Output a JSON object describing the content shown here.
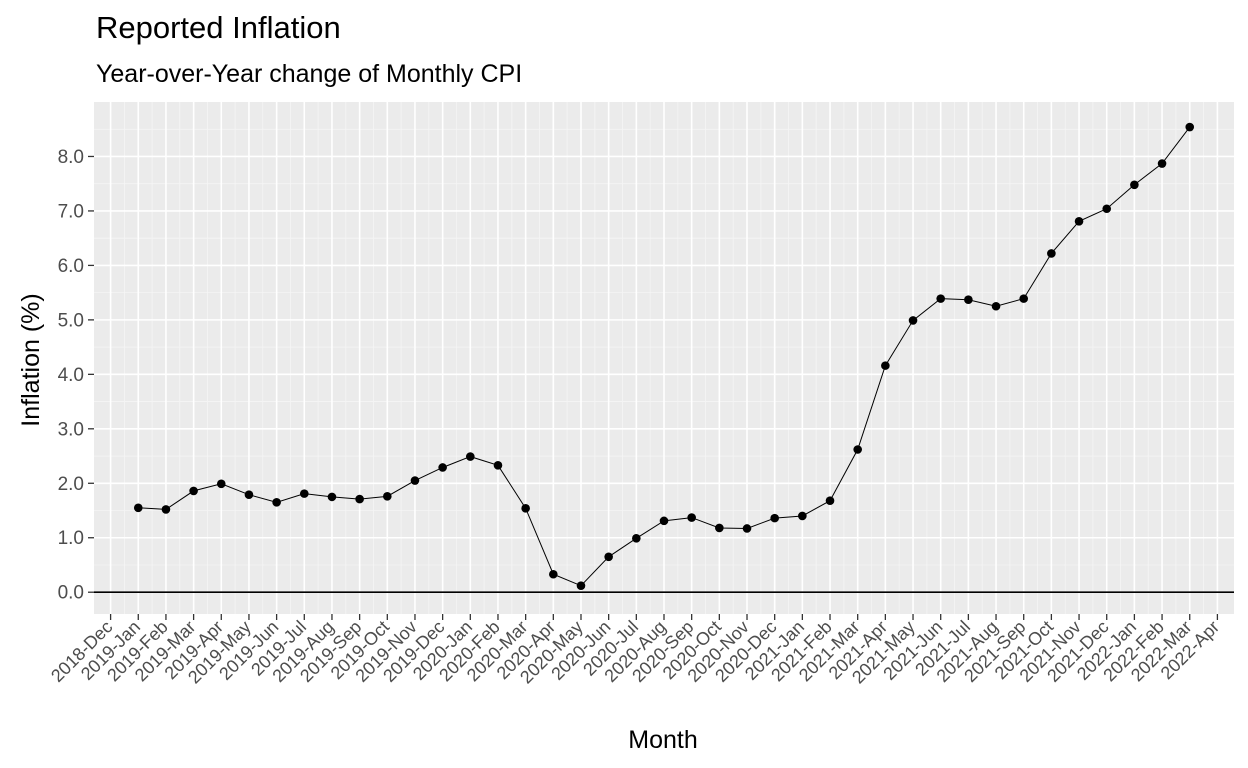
{
  "chart_data": {
    "type": "line",
    "title": "Reported Inflation",
    "subtitle": "Year-over-Year change of Monthly CPI",
    "xlabel": "Month",
    "ylabel": "Inflation (%)",
    "ylim": [
      -0.4,
      9.0
    ],
    "yticks": [
      "0.0",
      "1.0",
      "2.0",
      "3.0",
      "4.0",
      "5.0",
      "6.0",
      "7.0",
      "8.0"
    ],
    "grid": true,
    "reference_line": 0,
    "x_tick_labels": [
      "2018-Dec",
      "2019-Jan",
      "2019-Feb",
      "2019-Mar",
      "2019-Apr",
      "2019-May",
      "2019-Jun",
      "2019-Jul",
      "2019-Aug",
      "2019-Sep",
      "2019-Oct",
      "2019-Nov",
      "2019-Dec",
      "2020-Jan",
      "2020-Feb",
      "2020-Mar",
      "2020-Apr",
      "2020-May",
      "2020-Jun",
      "2020-Jul",
      "2020-Aug",
      "2020-Sep",
      "2020-Oct",
      "2020-Nov",
      "2020-Dec",
      "2021-Jan",
      "2021-Feb",
      "2021-Mar",
      "2021-Apr",
      "2021-May",
      "2021-Jun",
      "2021-Jul",
      "2021-Aug",
      "2021-Sep",
      "2021-Oct",
      "2021-Nov",
      "2021-Dec",
      "2022-Jan",
      "2022-Feb",
      "2022-Mar",
      "2022-Apr"
    ],
    "series": [
      {
        "x": [
          "2019-Jan",
          "2019-Feb",
          "2019-Mar",
          "2019-Apr",
          "2019-May",
          "2019-Jun",
          "2019-Jul",
          "2019-Aug",
          "2019-Sep",
          "2019-Oct",
          "2019-Nov",
          "2019-Dec",
          "2020-Jan",
          "2020-Feb",
          "2020-Mar",
          "2020-Apr",
          "2020-May",
          "2020-Jun",
          "2020-Jul",
          "2020-Aug",
          "2020-Sep",
          "2020-Oct",
          "2020-Nov",
          "2020-Dec",
          "2021-Jan",
          "2021-Feb",
          "2021-Mar",
          "2021-Apr",
          "2021-May",
          "2021-Jun",
          "2021-Jul",
          "2021-Aug",
          "2021-Sep",
          "2021-Oct",
          "2021-Nov",
          "2021-Dec",
          "2022-Jan",
          "2022-Feb",
          "2022-Mar"
        ],
        "values": [
          1.55,
          1.52,
          1.86,
          1.99,
          1.79,
          1.65,
          1.81,
          1.75,
          1.71,
          1.76,
          2.05,
          2.29,
          2.49,
          2.33,
          1.54,
          0.33,
          0.12,
          0.65,
          0.99,
          1.31,
          1.37,
          1.18,
          1.17,
          1.36,
          1.4,
          1.68,
          2.62,
          4.16,
          4.99,
          5.39,
          5.37,
          5.25,
          5.39,
          6.22,
          6.81,
          7.04,
          7.48,
          7.87,
          8.54
        ]
      }
    ]
  }
}
